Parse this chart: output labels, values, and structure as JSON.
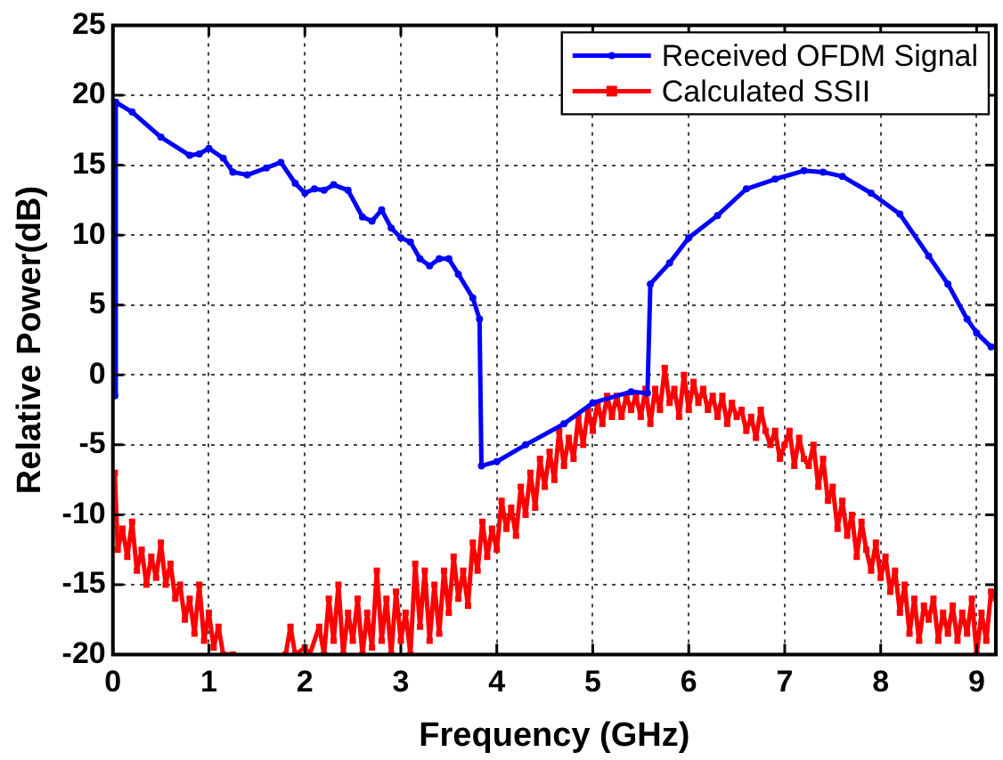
{
  "chart_data": {
    "type": "line",
    "xlabel": "Frequency (GHz)",
    "ylabel": "Relative Power(dB)",
    "xlim": [
      0,
      9.2
    ],
    "xticks": [
      0,
      1,
      2,
      3,
      4,
      5,
      6,
      7,
      8,
      9
    ],
    "ylim": [
      -20,
      25
    ],
    "yticks": [
      -20,
      -15,
      -10,
      -5,
      0,
      5,
      10,
      15,
      20,
      25
    ],
    "grid": true,
    "legend": "top right",
    "line_style": "solid",
    "series": [
      {
        "name": "Received OFDM Signal",
        "color": "#0000ff",
        "marker": "circle",
        "x": [
          0.02,
          0.03,
          0.2,
          0.5,
          0.8,
          0.9,
          1.0,
          1.15,
          1.25,
          1.4,
          1.6,
          1.75,
          1.9,
          2.0,
          2.1,
          2.2,
          2.3,
          2.45,
          2.6,
          2.7,
          2.8,
          2.9,
          3.0,
          3.1,
          3.2,
          3.3,
          3.4,
          3.5,
          3.6,
          3.75,
          3.82,
          3.84,
          4.0,
          4.3,
          4.7,
          5.0,
          5.4,
          5.57,
          5.6,
          5.8,
          6.0,
          6.3,
          6.6,
          6.9,
          7.2,
          7.4,
          7.6,
          7.9,
          8.2,
          8.5,
          8.7,
          8.9,
          9.0,
          9.15
        ],
        "values": [
          -1.5,
          19.5,
          18.8,
          17,
          15.7,
          15.8,
          16.2,
          15.5,
          14.5,
          14.3,
          14.8,
          15.2,
          13.7,
          13,
          13.3,
          13.2,
          13.6,
          13.2,
          11.3,
          11,
          11.8,
          10.5,
          9.8,
          9.5,
          8.3,
          7.8,
          8.3,
          8.3,
          7.2,
          5.5,
          4,
          -6.5,
          -6.2,
          -5,
          -3.5,
          -2,
          -1.2,
          -1.3,
          6.5,
          8,
          9.8,
          11.4,
          13.3,
          14,
          14.6,
          14.5,
          14.2,
          13,
          11.5,
          8.5,
          6.5,
          4,
          3,
          2
        ]
      },
      {
        "name": "Calculated SSII",
        "color": "#ff0000",
        "marker": "square",
        "x": [
          0.02,
          0.05,
          0.1,
          0.15,
          0.2,
          0.25,
          0.3,
          0.35,
          0.4,
          0.45,
          0.5,
          0.55,
          0.6,
          0.65,
          0.7,
          0.75,
          0.8,
          0.85,
          0.9,
          0.95,
          1.0,
          1.05,
          1.1,
          1.15,
          1.25,
          1.5,
          1.8,
          1.85,
          1.9,
          2.0,
          2.05,
          2.15,
          2.2,
          2.25,
          2.3,
          2.35,
          2.4,
          2.45,
          2.5,
          2.55,
          2.6,
          2.65,
          2.7,
          2.75,
          2.8,
          2.85,
          2.9,
          2.95,
          3.0,
          3.05,
          3.1,
          3.15,
          3.2,
          3.25,
          3.3,
          3.35,
          3.4,
          3.45,
          3.5,
          3.55,
          3.6,
          3.65,
          3.7,
          3.75,
          3.8,
          3.85,
          3.9,
          3.95,
          4.0,
          4.05,
          4.1,
          4.15,
          4.2,
          4.25,
          4.3,
          4.35,
          4.4,
          4.45,
          4.5,
          4.55,
          4.6,
          4.65,
          4.7,
          4.75,
          4.8,
          4.85,
          4.9,
          4.95,
          5.0,
          5.05,
          5.1,
          5.15,
          5.2,
          5.25,
          5.3,
          5.35,
          5.4,
          5.45,
          5.5,
          5.55,
          5.6,
          5.65,
          5.7,
          5.75,
          5.8,
          5.85,
          5.9,
          5.95,
          6.0,
          6.05,
          6.1,
          6.15,
          6.2,
          6.25,
          6.3,
          6.35,
          6.4,
          6.45,
          6.5,
          6.55,
          6.6,
          6.65,
          6.7,
          6.75,
          6.8,
          6.85,
          6.9,
          6.95,
          7.0,
          7.05,
          7.1,
          7.15,
          7.2,
          7.25,
          7.3,
          7.35,
          7.4,
          7.45,
          7.5,
          7.55,
          7.6,
          7.65,
          7.7,
          7.75,
          7.8,
          7.85,
          7.9,
          7.95,
          8.0,
          8.05,
          8.1,
          8.15,
          8.2,
          8.25,
          8.3,
          8.35,
          8.4,
          8.45,
          8.5,
          8.55,
          8.6,
          8.65,
          8.7,
          8.75,
          8.8,
          8.85,
          8.9,
          8.95,
          9.0,
          9.05,
          9.1,
          9.15,
          9.2
        ],
        "values": [
          -7,
          -12.5,
          -11,
          -13,
          -10.5,
          -14,
          -12.5,
          -15,
          -13,
          -14.5,
          -12,
          -15,
          -13.5,
          -16,
          -15,
          -17.5,
          -16,
          -18.5,
          -15,
          -19,
          -17,
          -19.5,
          -18,
          -20,
          -20,
          null,
          -20,
          -18,
          -20,
          -19.5,
          -20,
          -18,
          -20,
          -16,
          -19,
          -15,
          -20,
          -17,
          -19,
          -16,
          -20,
          -17,
          -19.5,
          -14,
          -19,
          -16,
          -20,
          -15.5,
          -19,
          -17,
          -20,
          -13.5,
          -18,
          -14,
          -19,
          -15,
          -18.5,
          -14,
          -17,
          -13,
          -16,
          -14,
          -16.5,
          -12,
          -14,
          -10.5,
          -13,
          -11,
          -12.5,
          -9,
          -11,
          -9.5,
          -11.5,
          -8,
          -10,
          -7,
          -9.5,
          -6,
          -8,
          -5.5,
          -7.5,
          -4,
          -6.5,
          -4.5,
          -6,
          -3,
          -5,
          -2.5,
          -4,
          -2,
          -3.5,
          -1.5,
          -3,
          -1.5,
          -3,
          -1.5,
          -2.5,
          -1.5,
          -3,
          -1,
          -3.5,
          -1,
          -2.5,
          0.5,
          -2,
          -1,
          -3,
          0,
          -2.5,
          -0.5,
          -2,
          -1,
          -2.5,
          -1.5,
          -3,
          -1.5,
          -3.5,
          -2,
          -3,
          -2.5,
          -4,
          -3,
          -4.5,
          -2.5,
          -4,
          -5,
          -4,
          -6,
          -5,
          -4,
          -6.5,
          -4.5,
          -6,
          -6.5,
          -5,
          -8,
          -6,
          -9,
          -8,
          -11,
          -9,
          -11.5,
          -10,
          -13,
          -10.5,
          -12.5,
          -14,
          -12,
          -14.5,
          -13,
          -15.5,
          -14,
          -17,
          -15,
          -18.5,
          -16,
          -19,
          -16.5,
          -17.5,
          -16,
          -19,
          -17,
          -18.5,
          -16.5,
          -19,
          -17,
          -18.5,
          -16,
          -20,
          -17,
          -19,
          -15.5,
          -16
        ]
      }
    ]
  }
}
